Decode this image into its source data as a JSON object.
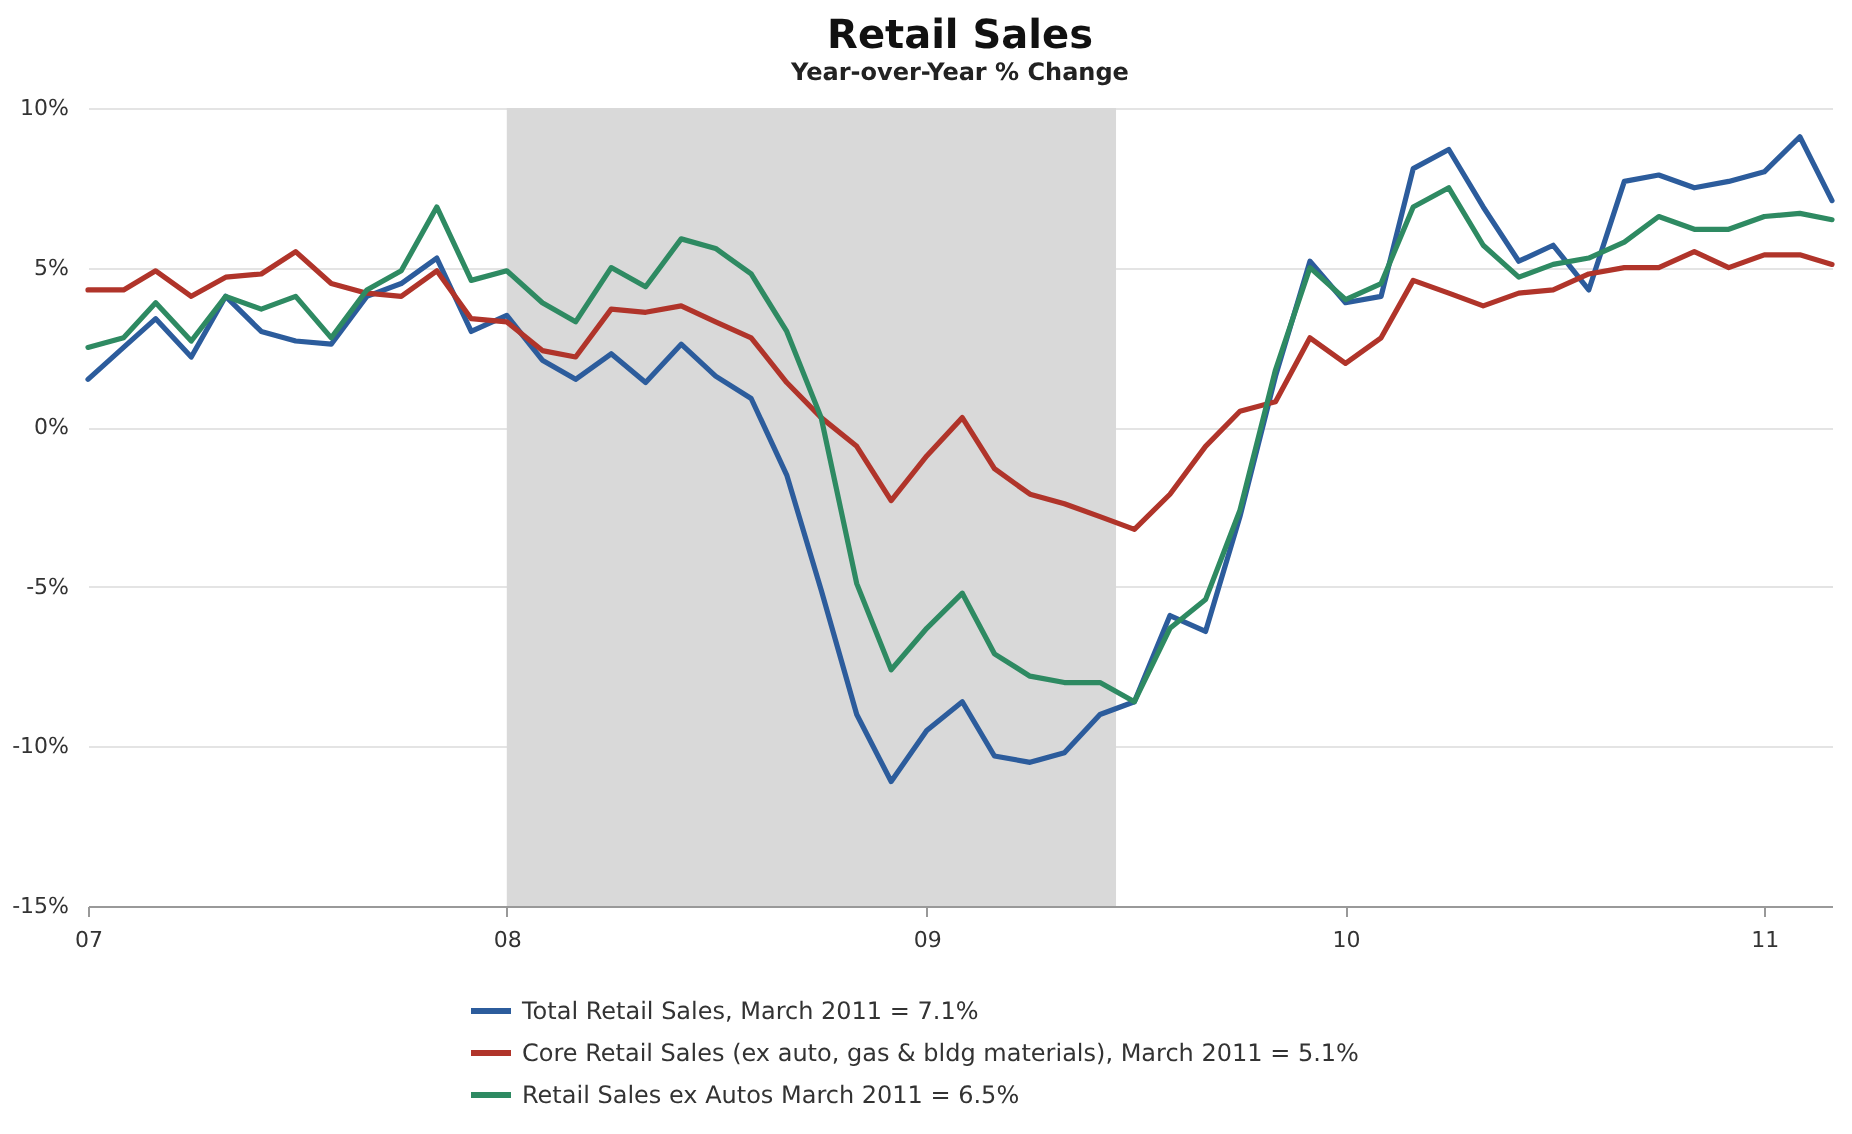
{
  "chart_data": {
    "type": "line",
    "title": "Retail Sales",
    "subtitle": "Year-over-Year % Change",
    "x": [
      "2007-01",
      "2007-02",
      "2007-03",
      "2007-04",
      "2007-05",
      "2007-06",
      "2007-07",
      "2007-08",
      "2007-09",
      "2007-10",
      "2007-11",
      "2007-12",
      "2008-01",
      "2008-02",
      "2008-03",
      "2008-04",
      "2008-05",
      "2008-06",
      "2008-07",
      "2008-08",
      "2008-09",
      "2008-10",
      "2008-11",
      "2008-12",
      "2009-01",
      "2009-02",
      "2009-03",
      "2009-04",
      "2009-05",
      "2009-06",
      "2009-07",
      "2009-08",
      "2009-09",
      "2009-10",
      "2009-11",
      "2009-12",
      "2010-01",
      "2010-02",
      "2010-03",
      "2010-04",
      "2010-05",
      "2010-06",
      "2010-07",
      "2010-08",
      "2010-09",
      "2010-10",
      "2010-11",
      "2010-12",
      "2011-01",
      "2011-02",
      "2011-03"
    ],
    "series": [
      {
        "name": "Total Retail Sales, March 2011  = 7.1%",
        "color": "#2c5c9c",
        "values": [
          1.5,
          2.5,
          3.4,
          2.2,
          4.1,
          3.0,
          2.7,
          2.6,
          4.1,
          4.5,
          5.3,
          3.0,
          3.5,
          2.1,
          1.5,
          2.3,
          1.4,
          2.6,
          1.6,
          0.9,
          -1.5,
          -5.1,
          -9.0,
          -11.1,
          -9.5,
          -8.6,
          -10.3,
          -10.5,
          -10.2,
          -9.0,
          -8.6,
          -5.9,
          -6.4,
          -2.8,
          1.6,
          5.2,
          3.9,
          4.1,
          8.1,
          8.7,
          6.9,
          5.2,
          5.7,
          4.3,
          7.7,
          7.9,
          7.5,
          7.7,
          8.0,
          9.1,
          7.1
        ]
      },
      {
        "name": "Core Retail Sales (ex auto, gas & bldg materials), March 2011  = 5.1%",
        "color": "#b0342a",
        "values": [
          4.3,
          4.3,
          4.9,
          4.1,
          4.7,
          4.8,
          5.5,
          4.5,
          4.2,
          4.1,
          4.9,
          3.4,
          3.3,
          2.4,
          2.2,
          3.7,
          3.6,
          3.8,
          3.3,
          2.8,
          1.4,
          0.3,
          -0.6,
          -2.3,
          -0.9,
          0.3,
          -1.3,
          -2.1,
          -2.4,
          -2.8,
          -3.2,
          -2.1,
          -0.6,
          0.5,
          0.8,
          2.8,
          2.0,
          2.8,
          4.6,
          4.2,
          3.8,
          4.2,
          4.3,
          4.8,
          5.0,
          5.0,
          5.5,
          5.0,
          5.4,
          5.4,
          5.1
        ]
      },
      {
        "name": "Retail Sales ex Autos March 2011  =  6.5%",
        "color": "#2e8a62",
        "values": [
          2.5,
          2.8,
          3.9,
          2.7,
          4.1,
          3.7,
          4.1,
          2.8,
          4.3,
          4.9,
          6.9,
          4.6,
          4.9,
          3.9,
          3.3,
          5.0,
          4.4,
          5.9,
          5.6,
          4.8,
          3.0,
          0.3,
          -4.9,
          -7.6,
          -6.3,
          -5.2,
          -7.1,
          -7.8,
          -8.0,
          -8.0,
          -8.6,
          -6.3,
          -5.4,
          -2.6,
          1.8,
          5.0,
          4.0,
          4.5,
          6.9,
          7.5,
          5.7,
          4.7,
          5.1,
          5.3,
          5.8,
          6.6,
          6.2,
          6.2,
          6.6,
          6.7,
          6.5
        ]
      }
    ],
    "xlim": [
      "2007-01",
      "2011-03"
    ],
    "xticks": [
      {
        "value": "2007",
        "label": "07"
      },
      {
        "value": "2008",
        "label": "08"
      },
      {
        "value": "2009",
        "label": "09"
      },
      {
        "value": "2010",
        "label": "10"
      },
      {
        "value": "2011",
        "label": "11"
      }
    ],
    "ylim": [
      -15,
      10
    ],
    "yticks": [
      {
        "value": -15,
        "label": "-15%"
      },
      {
        "value": -10,
        "label": "-10%"
      },
      {
        "value": -5,
        "label": "-5%"
      },
      {
        "value": 0,
        "label": "0%"
      },
      {
        "value": 5,
        "label": "5%"
      },
      {
        "value": 10,
        "label": "10%"
      }
    ],
    "grid": "y",
    "legend": "bottom",
    "bands": [
      {
        "axis": "x",
        "from": "2008-01",
        "to": "2009-06-15",
        "color": "#d9d9d9"
      }
    ]
  }
}
